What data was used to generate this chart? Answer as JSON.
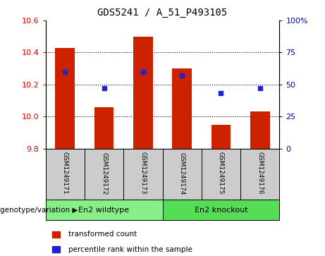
{
  "title": "GDS5241 / A_51_P493105",
  "samples": [
    "GSM1249171",
    "GSM1249172",
    "GSM1249173",
    "GSM1249174",
    "GSM1249175",
    "GSM1249176"
  ],
  "bar_values": [
    10.43,
    10.06,
    10.5,
    10.3,
    9.95,
    10.03
  ],
  "bar_bottom": 9.8,
  "percentile_ranks": [
    60,
    47,
    60,
    57,
    43,
    47
  ],
  "ylim_left": [
    9.8,
    10.6
  ],
  "ylim_right": [
    0,
    100
  ],
  "yticks_left": [
    9.8,
    10.0,
    10.2,
    10.4,
    10.6
  ],
  "yticks_right": [
    0,
    25,
    50,
    75,
    100
  ],
  "ytick_labels_right": [
    "0",
    "25",
    "50",
    "75",
    "100%"
  ],
  "bar_color": "#cc2200",
  "dot_color": "#2222cc",
  "group1_label": "En2 wildtype",
  "group2_label": "En2 knockout",
  "group1_color": "#88ee88",
  "group2_color": "#55dd55",
  "genotype_label": "genotype/variation",
  "legend_bar_label": "transformed count",
  "legend_dot_label": "percentile rank within the sample",
  "background_color": "#ffffff",
  "sample_box_color": "#cccccc",
  "grid_dotted_ticks": [
    10.0,
    10.2,
    10.4
  ]
}
